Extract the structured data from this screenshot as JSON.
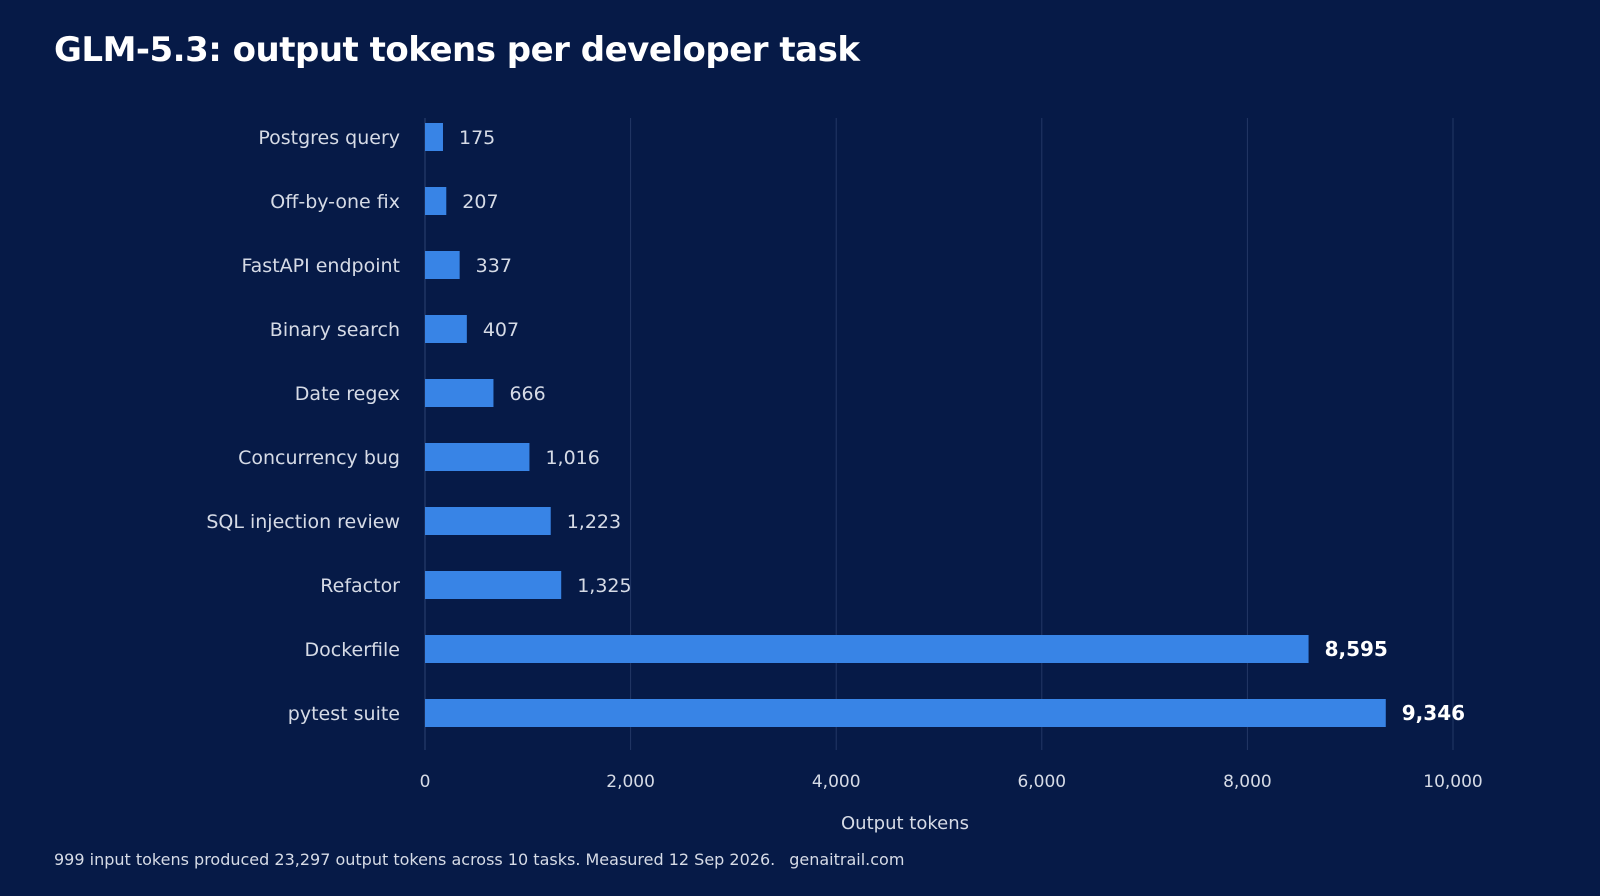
{
  "chart_data": {
    "type": "bar",
    "orientation": "horizontal",
    "title": "GLM-5.3: output tokens per developer task",
    "xlabel": "Output tokens",
    "ylabel": "",
    "categories": [
      "Postgres query",
      "Off-by-one fix",
      "FastAPI endpoint",
      "Binary search",
      "Date regex",
      "Concurrency bug",
      "SQL injection review",
      "Refactor",
      "Dockerfile",
      "pytest suite"
    ],
    "values": [
      175,
      207,
      337,
      407,
      666,
      1016,
      1223,
      1325,
      8595,
      9346
    ],
    "value_labels": [
      "175",
      "207",
      "337",
      "407",
      "666",
      "1,016",
      "1,223",
      "1,325",
      "8,595",
      "9,346"
    ],
    "highlighted": [
      "Dockerfile",
      "pytest suite"
    ],
    "xlim": [
      0,
      10000
    ],
    "xticks": [
      0,
      2000,
      4000,
      6000,
      8000,
      10000
    ],
    "xtick_labels": [
      "0",
      "2,000",
      "4,000",
      "6,000",
      "8,000",
      "10,000"
    ],
    "grid": "vertical",
    "legend": "none",
    "colors": {
      "background": "#061a47",
      "bar": "#3884e6",
      "grid": "#233866",
      "text": "#d6dbe6",
      "title": "#ffffff"
    }
  },
  "footnote": {
    "text": "999 input tokens produced 23,297 output tokens across 10 tasks. Measured 12 Sep 2026.",
    "site": "genaitrail.com"
  }
}
